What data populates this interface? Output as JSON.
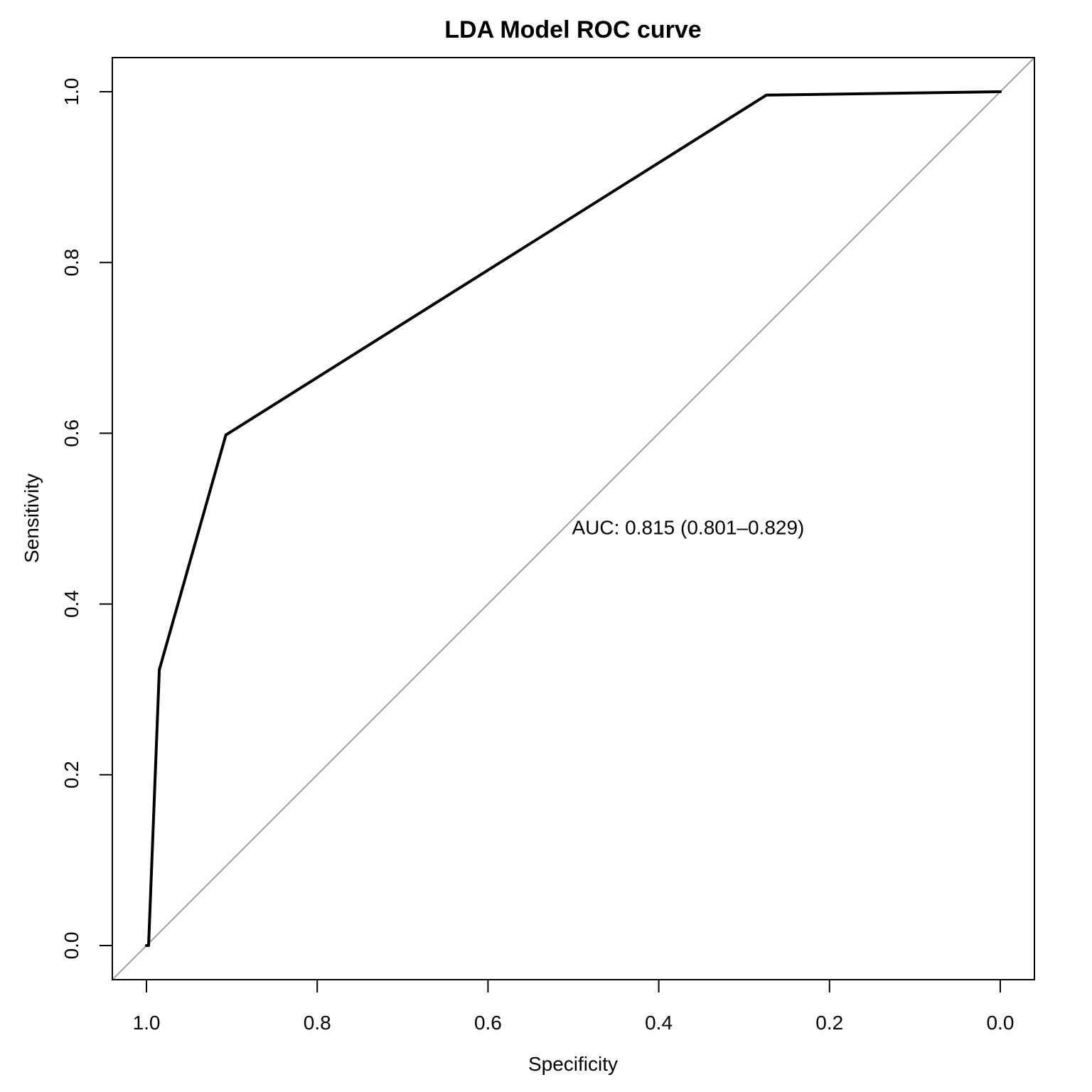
{
  "chart_data": {
    "type": "line",
    "title": "LDA Model ROC curve",
    "xlabel": "Specificity",
    "ylabel": "Sensitivity",
    "x_reversed": true,
    "xlim": [
      1.04,
      -0.04
    ],
    "ylim": [
      -0.04,
      1.04
    ],
    "xticks": [
      1.0,
      0.8,
      0.6,
      0.4,
      0.2,
      0.0
    ],
    "xtick_labels": [
      "1.0",
      "0.8",
      "0.6",
      "0.4",
      "0.2",
      "0.0"
    ],
    "yticks": [
      0.0,
      0.2,
      0.4,
      0.6,
      0.8,
      1.0
    ],
    "ytick_labels": [
      "0.0",
      "0.2",
      "0.4",
      "0.6",
      "0.8",
      "1.0"
    ],
    "grid": false,
    "series": [
      {
        "color": "#000000",
        "x": [
          1.0,
          0.9975,
          0.985,
          0.907,
          0.274,
          0.0
        ],
        "y": [
          0.0,
          0.0,
          0.323,
          0.598,
          0.996,
          1.0
        ]
      }
    ],
    "reference_line": {
      "from": [
        1.0,
        0.0
      ],
      "to": [
        0.0,
        1.0
      ],
      "color": "#a0a0a0"
    },
    "annotation": {
      "text": "AUC: 0.815 (0.801–0.829)",
      "x": 0.5,
      "y": 0.49
    }
  }
}
